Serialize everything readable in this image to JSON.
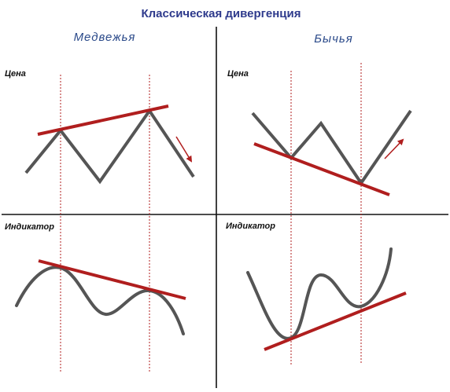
{
  "title": "Классическая дивергенция",
  "panels": {
    "bearish": {
      "heading": "Медвежья",
      "price_label": "Цена",
      "indicator_label": "Индикатор"
    },
    "bullish": {
      "heading": "Бычья",
      "price_label": "Цена",
      "indicator_label": "Индикатор"
    }
  },
  "colors": {
    "curve": "#555555",
    "trend": "#b01e1e",
    "axis": "#111111",
    "dashed": "#b01e1e",
    "title": "#2e3a8c",
    "heading": "#2b4a8a"
  }
}
